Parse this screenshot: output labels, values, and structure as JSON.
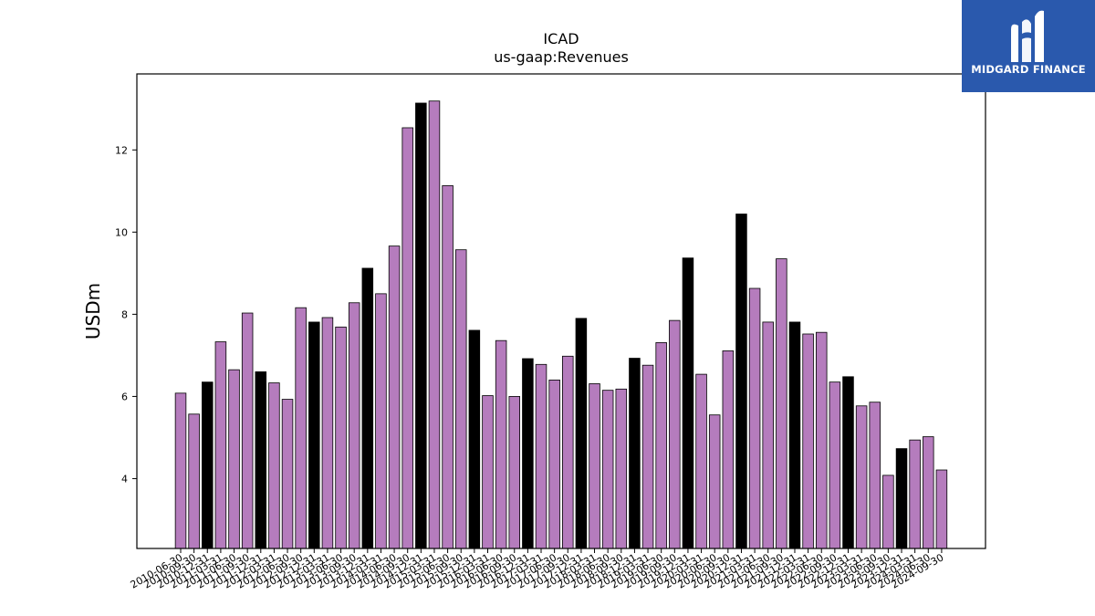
{
  "logo": {
    "text": "MIDGARD FINANCE",
    "color": "#2a59ad"
  },
  "chart_data": {
    "type": "bar",
    "title": "ICAD",
    "subtitle": "us-gaap:Revenues",
    "ylabel": "USDm",
    "xlabel": "",
    "ylim": [
      2.3,
      13.85
    ],
    "yticks": [
      4,
      6,
      8,
      10,
      12
    ],
    "grid": false,
    "colors": {
      "quarterly": "#b57cbd",
      "annual": "#000000",
      "edge": "#000000"
    },
    "categories": [
      "2010-06-30",
      "2010-09-30",
      "2010-12-31",
      "2011-03-31",
      "2011-06-30",
      "2011-09-30",
      "2011-12-31",
      "2012-03-31",
      "2012-06-30",
      "2012-09-30",
      "2012-12-31",
      "2013-03-31",
      "2013-06-30",
      "2013-09-30",
      "2013-12-31",
      "2014-03-31",
      "2014-06-30",
      "2014-09-30",
      "2014-12-31",
      "2015-03-31",
      "2015-06-30",
      "2015-09-30",
      "2015-12-31",
      "2016-03-31",
      "2016-06-30",
      "2016-09-30",
      "2016-12-31",
      "2017-03-31",
      "2017-06-30",
      "2017-09-30",
      "2017-12-31",
      "2018-03-31",
      "2018-06-30",
      "2018-09-30",
      "2018-12-31",
      "2019-03-31",
      "2019-06-30",
      "2019-09-30",
      "2019-12-31",
      "2020-03-31",
      "2020-06-30",
      "2020-09-30",
      "2020-12-31",
      "2021-03-31",
      "2021-06-30",
      "2021-09-30",
      "2021-12-31",
      "2022-03-31",
      "2022-06-30",
      "2022-09-30",
      "2022-12-31",
      "2023-03-31",
      "2023-06-30",
      "2023-09-30",
      "2023-12-31",
      "2024-03-31",
      "2024-06-30",
      "2024-09-30"
    ],
    "values": [
      6.08,
      5.57,
      6.35,
      7.33,
      6.65,
      8.03,
      6.6,
      6.33,
      5.93,
      8.16,
      7.81,
      7.92,
      7.69,
      8.28,
      9.12,
      8.5,
      9.66,
      12.54,
      13.14,
      13.19,
      11.13,
      9.57,
      7.61,
      6.02,
      7.36,
      6.0,
      6.92,
      6.78,
      6.4,
      6.98,
      7.9,
      6.31,
      6.15,
      6.18,
      6.93,
      6.76,
      7.31,
      7.85,
      9.37,
      6.54,
      5.55,
      7.11,
      10.44,
      8.63,
      7.81,
      9.35,
      7.81,
      7.52,
      7.56,
      6.35,
      6.48,
      5.77,
      5.86,
      4.08,
      4.73,
      4.94,
      5.02,
      4.21
    ],
    "annual": [
      false,
      false,
      true,
      false,
      false,
      false,
      true,
      false,
      false,
      false,
      true,
      false,
      false,
      false,
      true,
      false,
      false,
      false,
      true,
      false,
      false,
      false,
      true,
      false,
      false,
      false,
      true,
      false,
      false,
      false,
      true,
      false,
      false,
      false,
      true,
      false,
      false,
      false,
      true,
      false,
      false,
      false,
      true,
      false,
      false,
      false,
      true,
      false,
      false,
      false,
      true,
      false,
      false,
      false,
      true,
      false,
      false,
      false
    ]
  }
}
